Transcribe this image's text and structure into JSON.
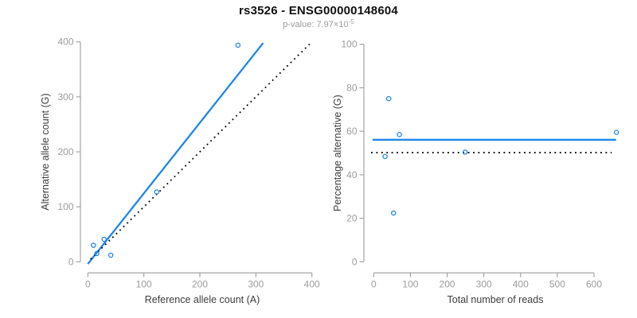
{
  "title": "rs3526 - ENSG00000148604",
  "subtitle": {
    "label": "p-value:",
    "mantissa": "7.97",
    "times": "×",
    "base": "10",
    "exponent": "-5"
  },
  "colors": {
    "accent_blue": "#1f86e8",
    "line_black": "#000000",
    "axis_gray": "#9c9c9c",
    "tick_label_gray": "#9c9c9c",
    "axis_title_dark": "#3d3d3d"
  },
  "chart_data": [
    {
      "type": "scatter",
      "name": "allele-counts",
      "xlabel": "Reference allele count (A)",
      "ylabel": "Alternative allele count (G)",
      "xlim": [
        0,
        400
      ],
      "ylim": [
        0,
        400
      ],
      "xticks": [
        0,
        100,
        200,
        300,
        400
      ],
      "yticks": [
        0,
        100,
        200,
        300,
        400
      ],
      "grid": false,
      "legend": "none",
      "points": [
        [
          10,
          30
        ],
        [
          29,
          41
        ],
        [
          16,
          15
        ],
        [
          41,
          12
        ],
        [
          123,
          127
        ],
        [
          268,
          394
        ]
      ],
      "lines": [
        {
          "name": "regression-line",
          "style": "solid",
          "color": "blue",
          "from": [
            0,
            -4
          ],
          "to": [
            313,
            398
          ]
        },
        {
          "name": "identity-line",
          "style": "dotted",
          "color": "black",
          "from": [
            5,
            5
          ],
          "to": [
            396,
            396
          ]
        }
      ]
    },
    {
      "type": "scatter",
      "name": "percentage-vs-coverage",
      "xlabel": "Total number of reads",
      "ylabel": "Percentage alternative (G)",
      "xlim": [
        0,
        660
      ],
      "ylim": [
        0,
        100
      ],
      "xticks": [
        0,
        100,
        200,
        300,
        400,
        500,
        600
      ],
      "yticks": [
        0,
        20,
        40,
        60,
        80,
        100
      ],
      "grid": false,
      "legend": "none",
      "points": [
        [
          41,
          75
        ],
        [
          70,
          58.5
        ],
        [
          31,
          48.4
        ],
        [
          54,
          22.4
        ],
        [
          249,
          50.4
        ],
        [
          661,
          59.5
        ]
      ],
      "lines": [
        {
          "name": "mean-percentage-line",
          "style": "solid",
          "color": "blue",
          "from": [
            -3,
            56.1
          ],
          "to": [
            660,
            56.1
          ]
        },
        {
          "name": "null-50pct-line",
          "style": "dotted",
          "color": "black",
          "from": [
            -7,
            50.2
          ],
          "to": [
            648,
            50.2
          ]
        }
      ]
    }
  ]
}
